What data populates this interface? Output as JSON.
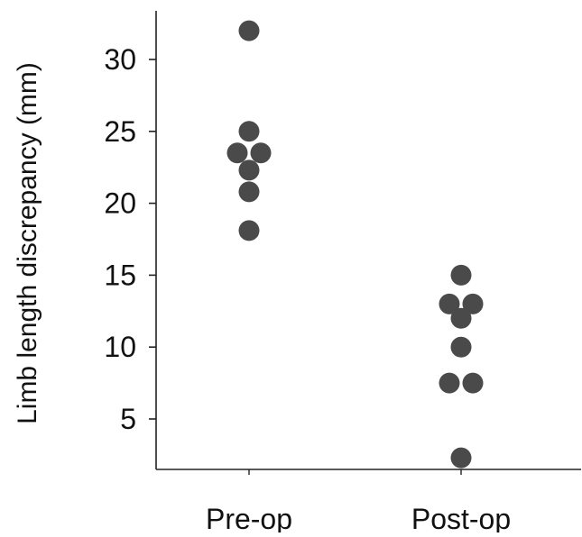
{
  "chart_data": {
    "type": "scatter",
    "title": "",
    "xlabel": "",
    "ylabel": "Limb length discrepancy (mm)",
    "categories": [
      "Pre-op",
      "Post-op"
    ],
    "ylim": [
      0,
      33
    ],
    "yticks": [
      5,
      10,
      15,
      20,
      25,
      30
    ],
    "grid": false,
    "legend": "none",
    "marker_color": "#4a4a4a",
    "series": [
      {
        "category": "Pre-op",
        "points": [
          {
            "y": 32,
            "offset": 0
          },
          {
            "y": 25,
            "offset": 0
          },
          {
            "y": 23.5,
            "offset": -1
          },
          {
            "y": 23.5,
            "offset": 1
          },
          {
            "y": 22.3,
            "offset": 0
          },
          {
            "y": 20.8,
            "offset": 0
          },
          {
            "y": 18.1,
            "offset": 0
          }
        ]
      },
      {
        "category": "Post-op",
        "points": [
          {
            "y": 15,
            "offset": 0
          },
          {
            "y": 13,
            "offset": -1
          },
          {
            "y": 13,
            "offset": 1
          },
          {
            "y": 12,
            "offset": 0
          },
          {
            "y": 10,
            "offset": 0
          },
          {
            "y": 7.5,
            "offset": -1
          },
          {
            "y": 7.5,
            "offset": 1
          },
          {
            "y": 2.3,
            "offset": 0
          }
        ]
      }
    ]
  }
}
